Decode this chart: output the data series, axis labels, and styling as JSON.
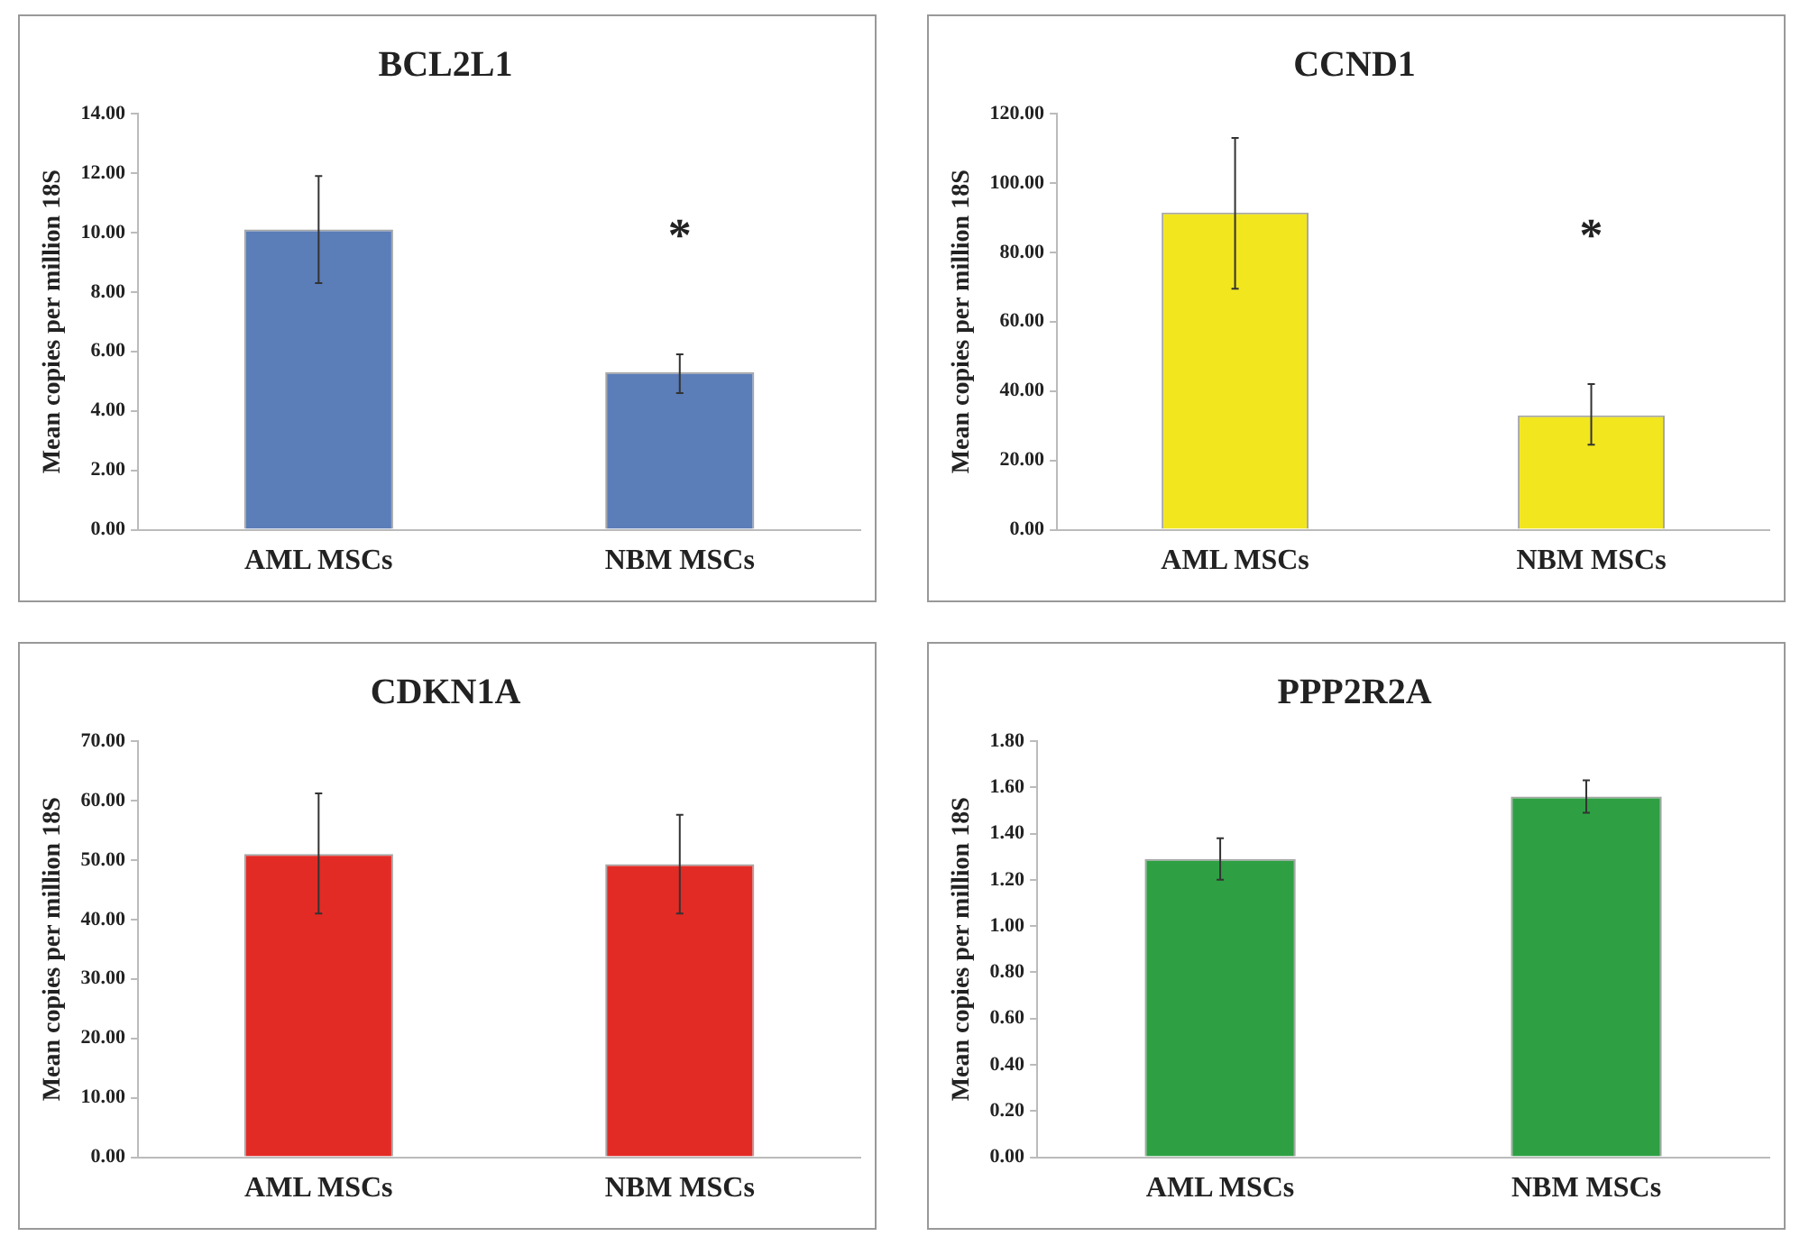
{
  "chart_data": [
    {
      "type": "bar",
      "title": "BCL2L1",
      "ylabel": "Mean copies per million 18S",
      "categories": [
        "AML MSCs",
        "NBM MSCs"
      ],
      "values": [
        10.1,
        5.3
      ],
      "errors": [
        [
          8.3,
          11.9
        ],
        [
          4.6,
          5.9
        ]
      ],
      "color": "#5b7db8",
      "ylim": [
        0,
        14
      ],
      "yticks": [
        {
          "value": 0,
          "label": "0.00"
        },
        {
          "value": 2,
          "label": "2.00"
        },
        {
          "value": 4,
          "label": "4.00"
        },
        {
          "value": 6,
          "label": "6.00"
        },
        {
          "value": 8,
          "label": "8.00"
        },
        {
          "value": 10,
          "label": "10.00"
        },
        {
          "value": 12,
          "label": "12.00"
        },
        {
          "value": 14,
          "label": "14.00"
        }
      ],
      "annotations": [
        "*"
      ],
      "legend": false
    },
    {
      "type": "bar",
      "title": "CCND1",
      "ylabel": "Mean copies per million 18S",
      "categories": [
        "AML MSCs",
        "NBM MSCs"
      ],
      "values": [
        91.5,
        33
      ],
      "errors": [
        [
          69.5,
          113
        ],
        [
          24.5,
          42
        ]
      ],
      "color": "#f2e61f",
      "ylim": [
        0,
        120
      ],
      "yticks": [
        {
          "value": 0,
          "label": "0.00"
        },
        {
          "value": 20,
          "label": "20.00"
        },
        {
          "value": 40,
          "label": "40.00"
        },
        {
          "value": 60,
          "label": "60.00"
        },
        {
          "value": 80,
          "label": "80.00"
        },
        {
          "value": 100,
          "label": "100.00"
        },
        {
          "value": 120,
          "label": "120.00"
        }
      ],
      "annotations": [
        "*"
      ],
      "legend": false
    },
    {
      "type": "bar",
      "title": "CDKN1A",
      "ylabel": "Mean copies per million 18S",
      "categories": [
        "AML MSCs",
        "NBM MSCs"
      ],
      "values": [
        51,
        49.3
      ],
      "errors": [
        [
          41,
          61.2
        ],
        [
          41,
          57.6
        ]
      ],
      "color": "#e32b26",
      "ylim": [
        0,
        70
      ],
      "yticks": [
        {
          "value": 0,
          "label": "0.00"
        },
        {
          "value": 10,
          "label": "10.00"
        },
        {
          "value": 20,
          "label": "20.00"
        },
        {
          "value": 30,
          "label": "30.00"
        },
        {
          "value": 40,
          "label": "40.00"
        },
        {
          "value": 50,
          "label": "50.00"
        },
        {
          "value": 60,
          "label": "60.00"
        },
        {
          "value": 70,
          "label": "70.00"
        }
      ],
      "legend": false
    },
    {
      "type": "bar",
      "title": "PPP2R2A",
      "ylabel": "Mean copies per million 18S",
      "categories": [
        "AML MSCs",
        "NBM MSCs"
      ],
      "values": [
        1.29,
        1.56
      ],
      "errors": [
        [
          1.2,
          1.38
        ],
        [
          1.49,
          1.63
        ]
      ],
      "color": "#2ea043",
      "ylim": [
        0,
        1.8
      ],
      "yticks": [
        {
          "value": 0,
          "label": "0.00"
        },
        {
          "value": 0.2,
          "label": "0.20"
        },
        {
          "value": 0.4,
          "label": "0.40"
        },
        {
          "value": 0.6,
          "label": "0.60"
        },
        {
          "value": 0.8,
          "label": "0.80"
        },
        {
          "value": 1,
          "label": "1.00"
        },
        {
          "value": 1.2,
          "label": "1.20"
        },
        {
          "value": 1.4,
          "label": "1.40"
        },
        {
          "value": 1.6,
          "label": "1.60"
        },
        {
          "value": 1.8,
          "label": "1.80"
        }
      ],
      "legend": false
    }
  ]
}
